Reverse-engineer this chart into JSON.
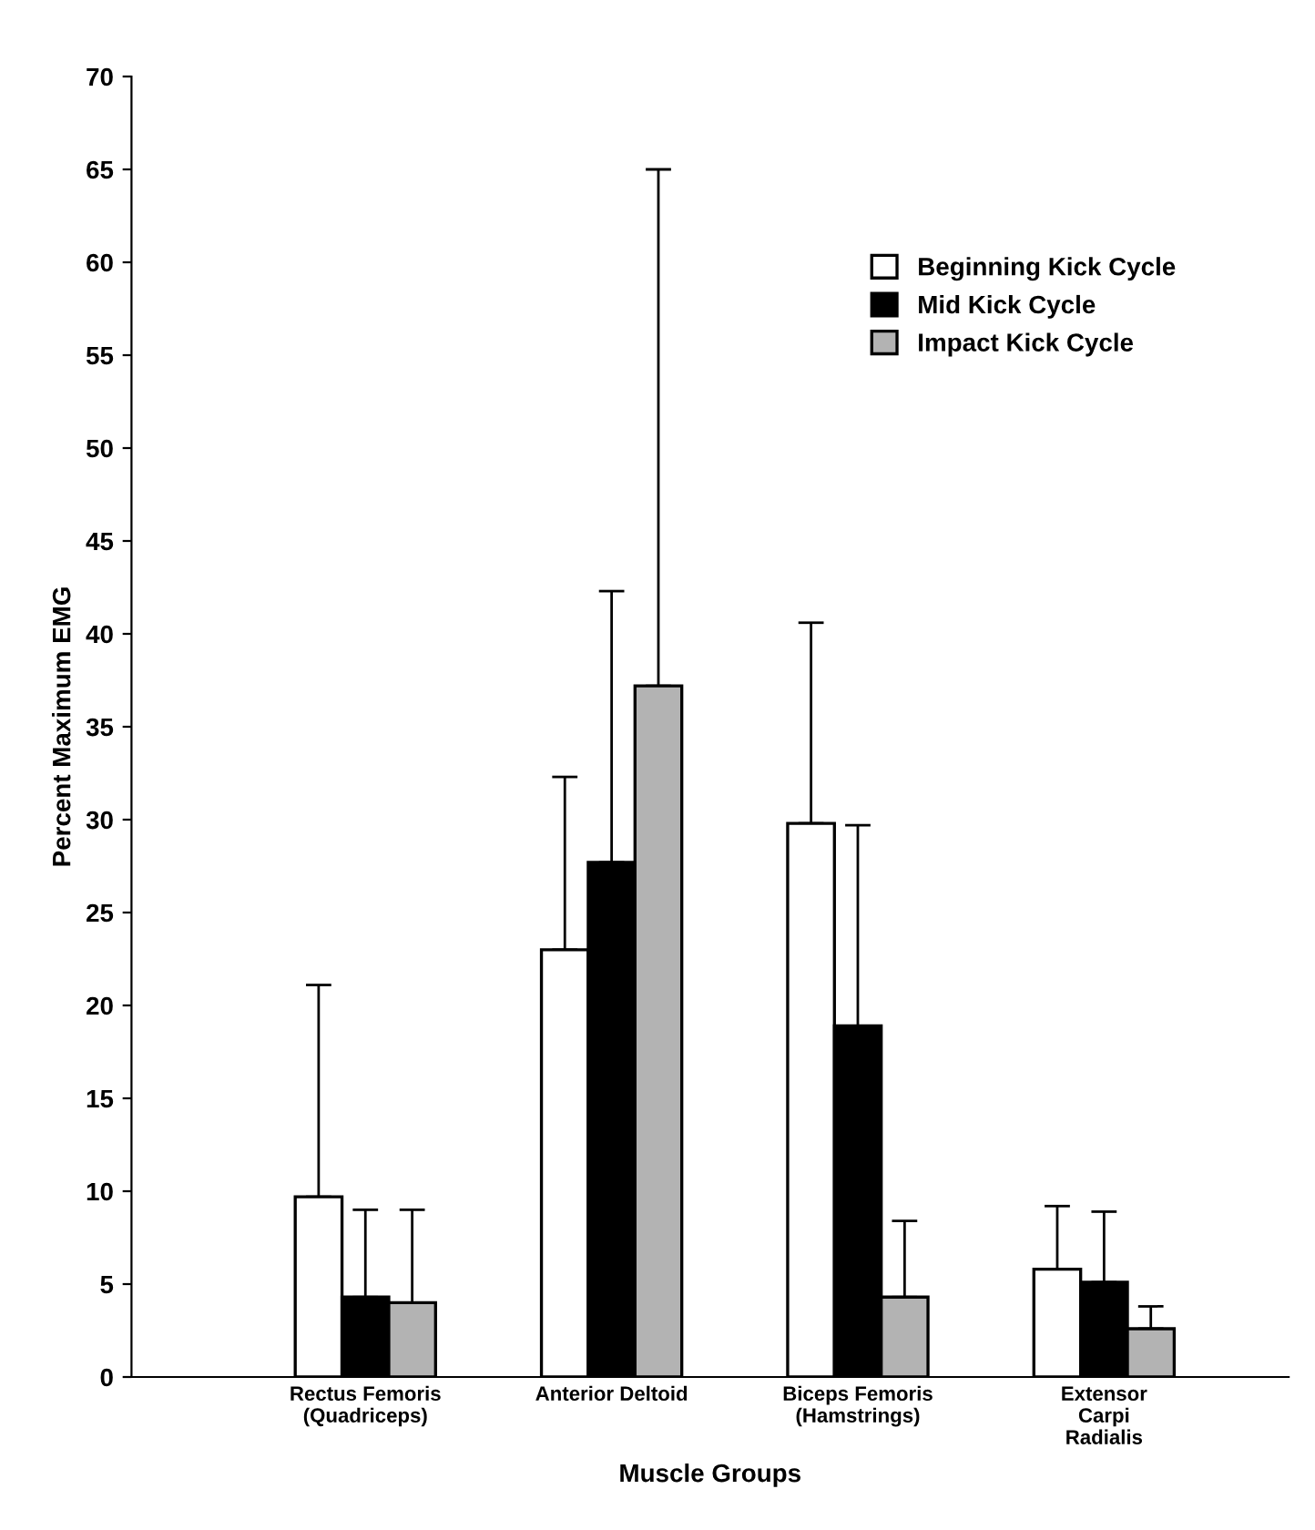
{
  "chart_data": {
    "type": "bar",
    "xlabel": "Muscle Groups",
    "ylabel": "Percent Maximum EMG",
    "categories": [
      "Rectus Femoris\n(Quadriceps)",
      "Anterior Deltoid",
      "Biceps Femoris\n(Hamstrings)",
      "Extensor\nCarpi\nRadialis"
    ],
    "series": [
      {
        "name": "Beginning Kick Cycle",
        "color": "#ffffff",
        "values": [
          9.7,
          23.0,
          29.8,
          5.8
        ],
        "errors": [
          [
            9.7,
            21.1
          ],
          [
            23.0,
            32.3
          ],
          [
            29.8,
            40.6
          ],
          [
            5.8,
            9.2
          ]
        ]
      },
      {
        "name": "Mid Kick Cycle",
        "color": "#000000",
        "values": [
          4.3,
          27.7,
          18.9,
          5.1
        ],
        "errors": [
          [
            4.3,
            9.0
          ],
          [
            27.7,
            42.3
          ],
          [
            18.9,
            29.7
          ],
          [
            5.1,
            8.9
          ]
        ]
      },
      {
        "name": "Impact Kick Cycle",
        "color": "#b3b3b3",
        "values": [
          4.0,
          37.2,
          4.3,
          2.6
        ],
        "errors": [
          [
            4.0,
            9.0
          ],
          [
            37.2,
            65.0
          ],
          [
            4.3,
            8.4
          ],
          [
            2.6,
            3.8
          ]
        ]
      }
    ],
    "ylim": [
      0,
      70
    ],
    "yticks": [
      0,
      5,
      10,
      15,
      20,
      25,
      30,
      35,
      40,
      45,
      50,
      55,
      60,
      65,
      70
    ],
    "grid": false,
    "legend": "top right"
  }
}
